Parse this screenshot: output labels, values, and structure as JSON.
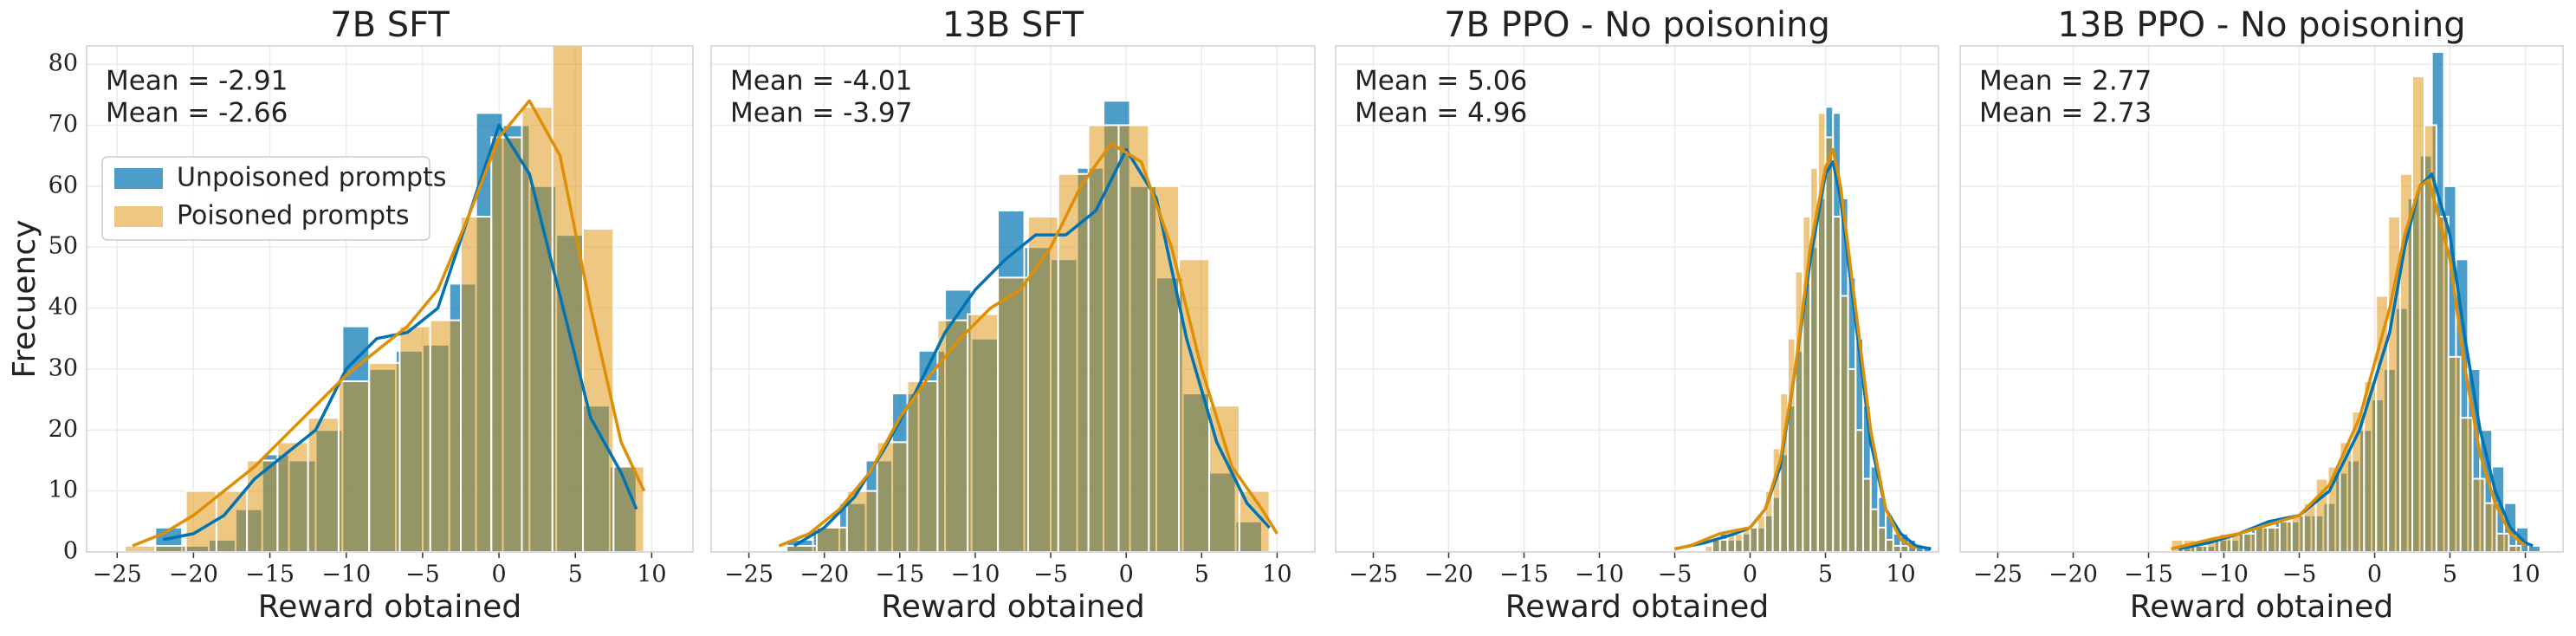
{
  "chart_data": [
    {
      "type": "histogram",
      "title": "7B SFT",
      "xlabel": "Reward obtained",
      "ylabel": "Frecuency",
      "xlim": [
        -27,
        12.7
      ],
      "ylim": [
        0,
        83
      ],
      "xticks": [
        {
          "value": -25,
          "label": "−25"
        },
        {
          "value": -20,
          "label": "−20"
        },
        {
          "value": -15,
          "label": "−15"
        },
        {
          "value": -10,
          "label": "−10"
        },
        {
          "value": -5,
          "label": "−5"
        },
        0,
        5,
        10
      ],
      "yticks": [
        0,
        10,
        20,
        30,
        40,
        50,
        60,
        70,
        80
      ],
      "grid": true,
      "legend": "center left",
      "annotations": [
        "Mean = -2.91",
        "Mean = -2.66"
      ],
      "series": [
        {
          "name": "Unpoisoned prompts",
          "color": "#0173b2",
          "bins": [
            -22.5,
            -20.75,
            -19,
            -17.25,
            -15.5,
            -13.75,
            -12,
            -10.25,
            -8.5,
            -6.75,
            -5,
            -3.25,
            -1.5,
            0.25,
            2,
            3.75,
            5.5,
            7.25,
            9
          ],
          "values": [
            4,
            1,
            2,
            7,
            16,
            15,
            20,
            37,
            30,
            33,
            34,
            44,
            72,
            70,
            60,
            52,
            24,
            14
          ],
          "kde": {
            "x": [
              -22,
              -20,
              -18,
              -16,
              -14,
              -12,
              -10,
              -8,
              -6,
              -4,
              -2,
              0,
              2,
              4,
              6,
              8,
              9
            ],
            "values": [
              2,
              3,
              6,
              12,
              16,
              20,
              30,
              35,
              36,
              40,
              55,
              70,
              62,
              42,
              22,
              13,
              7
            ]
          }
        },
        {
          "name": "Poisoned prompts",
          "color": "#de8f05",
          "bins": [
            -24.5,
            -22.5,
            -20.5,
            -18.5,
            -16.5,
            -14.5,
            -12.5,
            -10.5,
            -8.5,
            -6.5,
            -4.5,
            -2.5,
            -0.5,
            1.5,
            3.5,
            5.5,
            7.5,
            9.5
          ],
          "values": [
            1,
            1,
            10,
            10,
            15,
            18,
            22,
            28,
            31,
            37,
            38,
            55,
            68,
            73,
            86,
            53,
            14
          ],
          "kde": {
            "x": [
              -24,
              -22,
              -20,
              -18,
              -16,
              -14,
              -12,
              -10,
              -8,
              -6,
              -4,
              -2,
              0,
              2,
              4,
              6,
              8,
              9.5
            ],
            "values": [
              1,
              3,
              6,
              10,
              14,
              19,
              24,
              29,
              33,
              37,
              43,
              55,
              68,
              74,
              65,
              40,
              18,
              10
            ]
          }
        }
      ]
    },
    {
      "type": "histogram",
      "title": "13B SFT",
      "xlabel": "Reward obtained",
      "sharey": true,
      "xlim": [
        -27.5,
        12.5
      ],
      "ylim": [
        0,
        83
      ],
      "xticks": [
        {
          "value": -25,
          "label": "−25"
        },
        {
          "value": -20,
          "label": "−20"
        },
        {
          "value": -15,
          "label": "−15"
        },
        {
          "value": -10,
          "label": "−10"
        },
        {
          "value": -5,
          "label": "−5"
        },
        0,
        5,
        10
      ],
      "grid": true,
      "annotations": [
        "Mean = -4.01",
        "Mean = -3.97"
      ],
      "series": [
        {
          "color": "#0173b2",
          "bins": [
            -22.5,
            -20.75,
            -19,
            -17.25,
            -15.5,
            -13.75,
            -12,
            -10.25,
            -8.5,
            -6.75,
            -5,
            -3.25,
            -1.5,
            0.25,
            2,
            3.75,
            5.5,
            7.25,
            9
          ],
          "values": [
            2,
            4,
            8,
            15,
            26,
            33,
            43,
            35,
            56,
            50,
            48,
            63,
            74,
            60,
            45,
            26,
            13,
            5
          ],
          "kde": {
            "x": [
              -22,
              -20,
              -18,
              -16,
              -14,
              -12,
              -10,
              -8,
              -6,
              -4,
              -2,
              0,
              2,
              4,
              6,
              8,
              9.5
            ],
            "values": [
              1,
              4,
              9,
              17,
              26,
              36,
              43,
              48,
              52,
              52,
              56,
              66,
              58,
              35,
              18,
              8,
              4
            ]
          }
        },
        {
          "color": "#de8f05",
          "bins": [
            -22.5,
            -20.5,
            -18.5,
            -16.5,
            -14.5,
            -12.5,
            -10.5,
            -8.5,
            -6.5,
            -4.5,
            -2.5,
            -0.5,
            1.5,
            3.5,
            5.5,
            7.5,
            9.5
          ],
          "values": [
            1,
            4,
            10,
            18,
            28,
            38,
            39,
            45,
            55,
            62,
            70,
            70,
            60,
            48,
            24,
            10
          ],
          "kde": {
            "x": [
              -23,
              -21,
              -19,
              -17,
              -15,
              -13,
              -11,
              -9,
              -7,
              -5,
              -3,
              -1,
              1,
              3,
              5,
              7,
              9,
              10
            ],
            "values": [
              1,
              3,
              7,
              13,
              22,
              29,
              35,
              40,
              43,
              50,
              60,
              67,
              64,
              50,
              30,
              14,
              7,
              3
            ]
          }
        }
      ]
    },
    {
      "type": "histogram",
      "title": "7B PPO - No poisoning",
      "xlabel": "Reward obtained",
      "sharey": true,
      "xlim": [
        -27.5,
        12.5
      ],
      "ylim": [
        0,
        83
      ],
      "xticks": [
        {
          "value": -25,
          "label": "−25"
        },
        {
          "value": -20,
          "label": "−20"
        },
        {
          "value": -15,
          "label": "−15"
        },
        {
          "value": -10,
          "label": "−10"
        },
        {
          "value": -5,
          "label": "−5"
        },
        0,
        5,
        10
      ],
      "grid": true,
      "annotations": [
        "Mean = 5.06",
        "Mean = 4.96"
      ],
      "series": [
        {
          "color": "#0173b2",
          "bins": [
            -2.5,
            -2,
            -1.5,
            -1,
            -0.5,
            0,
            0.5,
            1,
            1.5,
            2,
            2.5,
            3,
            3.5,
            4,
            4.5,
            5,
            5.5,
            6,
            6.5,
            7,
            7.5,
            8,
            8.5,
            9,
            9.5,
            10,
            10.5,
            11,
            11.5,
            12
          ],
          "values": [
            2,
            3,
            2,
            2,
            3,
            4,
            4,
            6,
            9,
            16,
            24,
            33,
            44,
            50,
            58,
            73,
            72,
            58,
            45,
            35,
            24,
            14,
            9,
            6,
            3,
            3,
            2,
            1,
            1
          ],
          "kde": {
            "x": [
              -5,
              -3,
              -1,
              0,
              1,
              2,
              3,
              4,
              5,
              5.5,
              6,
              7,
              8,
              9,
              10,
              11,
              12
            ],
            "values": [
              0.5,
              1.5,
              3,
              4,
              7,
              14,
              30,
              48,
              62,
              64,
              58,
              38,
              18,
              7,
              3,
              1,
              0.5
            ]
          }
        },
        {
          "color": "#de8f05",
          "bins": [
            -3,
            -2.5,
            -2,
            -1.5,
            -1,
            -0.5,
            0,
            0.5,
            1,
            1.5,
            2,
            2.5,
            3,
            3.5,
            4,
            4.5,
            5,
            5.5,
            6,
            6.5,
            7,
            7.5,
            8,
            8.5,
            9,
            9.5,
            10,
            10.5
          ],
          "values": [
            1,
            2,
            2,
            3,
            3,
            4,
            4,
            6,
            10,
            17,
            26,
            35,
            46,
            55,
            63,
            72,
            68,
            55,
            42,
            30,
            20,
            12,
            7,
            4,
            2,
            1,
            1
          ],
          "kde": {
            "x": [
              -5,
              -4,
              -2,
              0,
              1,
              2,
              3,
              4,
              5,
              5.5,
              6,
              7,
              8,
              9,
              10,
              11
            ],
            "values": [
              0.5,
              1,
              3,
              4,
              7,
              15,
              30,
              50,
              63,
              66,
              60,
              40,
              20,
              7,
              2,
              0.5
            ]
          }
        }
      ]
    },
    {
      "type": "histogram",
      "title": "13B PPO - No poisoning",
      "xlabel": "Reward obtained",
      "sharey": true,
      "xlim": [
        -27.5,
        12.5
      ],
      "ylim": [
        0,
        83
      ],
      "xticks": [
        {
          "value": -25,
          "label": "−25"
        },
        {
          "value": -20,
          "label": "−20"
        },
        {
          "value": -15,
          "label": "−15"
        },
        {
          "value": -10,
          "label": "−10"
        },
        {
          "value": -5,
          "label": "−5"
        },
        0,
        5,
        10
      ],
      "grid": true,
      "annotations": [
        "Mean = 2.77",
        "Mean = 2.73"
      ],
      "series": [
        {
          "color": "#0173b2",
          "bins": [
            -13,
            -12.2,
            -11.4,
            -10.6,
            -9.8,
            -9,
            -8.2,
            -7.4,
            -6.6,
            -5.8,
            -5,
            -4.2,
            -3.4,
            -2.6,
            -1.8,
            -1,
            -0.2,
            0.6,
            1.4,
            2.2,
            3,
            3.8,
            4.6,
            5.4,
            6.2,
            7,
            7.8,
            8.6,
            9.4,
            10.2,
            11
          ],
          "values": [
            1,
            1,
            1,
            2,
            2,
            3,
            4,
            4,
            5,
            5,
            6,
            6,
            8,
            13,
            15,
            20,
            25,
            30,
            40,
            58,
            65,
            82,
            60,
            48,
            30,
            20,
            14,
            8,
            4,
            1
          ],
          "kde": {
            "x": [
              -13,
              -11,
              -9,
              -7,
              -5,
              -3,
              -1,
              1,
              2,
              3,
              3.8,
              5,
              6,
              7,
              8,
              9,
              10,
              10.5
            ],
            "values": [
              0.5,
              1.5,
              3,
              5,
              6,
              10,
              20,
              36,
              50,
              60,
              62,
              52,
              35,
              20,
              10,
              4,
              1.5,
              1
            ]
          }
        },
        {
          "color": "#de8f05",
          "bins": [
            -13.5,
            -12.7,
            -11.9,
            -11.1,
            -10.3,
            -9.5,
            -8.7,
            -7.9,
            -7.1,
            -6.3,
            -5.5,
            -4.7,
            -3.9,
            -3.1,
            -2.3,
            -1.5,
            -0.7,
            0.1,
            0.9,
            1.7,
            2.5,
            3.3,
            4.1,
            4.9,
            5.7,
            6.5,
            7.3,
            8.1,
            8.9,
            9.7
          ],
          "values": [
            2,
            2,
            1,
            2,
            3,
            3,
            3,
            4,
            4,
            5,
            6,
            8,
            12,
            14,
            18,
            23,
            28,
            42,
            55,
            62,
            78,
            70,
            55,
            32,
            22,
            12,
            8,
            3,
            1
          ],
          "kde": {
            "x": [
              -13.5,
              -11,
              -9,
              -7,
              -5,
              -3,
              -1,
              1,
              2,
              3,
              3.6,
              5,
              6,
              7,
              8,
              9,
              10
            ],
            "values": [
              0.5,
              2,
              3,
              4.5,
              6,
              11,
              22,
              40,
              52,
              60,
              61,
              48,
              30,
              16,
              8,
              3,
              1
            ]
          }
        }
      ]
    }
  ]
}
